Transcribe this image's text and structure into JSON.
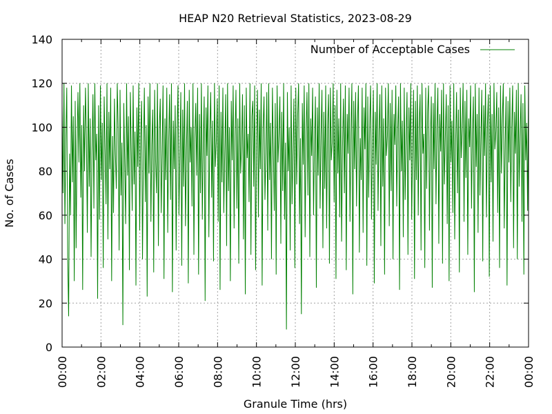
{
  "chart_data": {
    "type": "line",
    "title": "HEAP N20 Retrieval Statistics, 2023-08-29",
    "xlabel": "Granule Time (hrs)",
    "ylabel": "No. of Cases",
    "xlim": [
      "00:00",
      "24:00"
    ],
    "ylim": [
      0,
      140
    ],
    "x_ticks": [
      "00:00",
      "02:00",
      "04:00",
      "06:00",
      "08:00",
      "10:00",
      "12:00",
      "14:00",
      "16:00",
      "18:00",
      "20:00",
      "22:00",
      "00:00"
    ],
    "y_ticks": [
      0,
      20,
      40,
      60,
      80,
      100,
      120,
      140
    ],
    "grid": true,
    "legend_position": "top-right",
    "series": [
      {
        "name": "Number of Acceptable Cases",
        "color": "#008000",
        "sampling": "one value every 2 minutes starting 00:00",
        "values": [
          110,
          70,
          120,
          56,
          95,
          118,
          40,
          14,
          88,
          60,
          119,
          75,
          105,
          30,
          112,
          45,
          92,
          116,
          84,
          120,
          68,
          101,
          26,
          110,
          80,
          118,
          96,
          52,
          120,
          73,
          104,
          41,
          89,
          115,
          63,
          120,
          85,
          97,
          22,
          110,
          58,
          119,
          76,
          102,
          36,
          114,
          90,
          65,
          120,
          49,
          107,
          81,
          118,
          30,
          96,
          61,
          113,
          88,
          72,
          120,
          100,
          44,
          117,
          69,
          93,
          10,
          111,
          84,
          56,
          120,
          78,
          105,
          35,
          116,
          90,
          62,
          119,
          74,
          98,
          28,
          109,
          82,
          120,
          53,
          95,
          112,
          40,
          87,
          118,
          66,
          101,
          23,
          114,
          79,
          120,
          57,
          92,
          108,
          34,
          117,
          85,
          70,
          120,
          46,
          99,
          113,
          61,
          88,
          119,
          31,
          104,
          76,
          118,
          52,
          94,
          115,
          67,
          120,
          25,
          103,
          81,
          110,
          44,
          97,
          119,
          60,
          86,
          116,
          37,
          108,
          73,
          120,
          55,
          90,
          112,
          29,
          117,
          84,
          100,
          64,
          120,
          42,
          95,
          111,
          78,
          118,
          33,
          106,
          70,
          120,
          58,
          92,
          114,
          21,
          109,
          87,
          119,
          50,
          98,
          116,
          68,
          103,
          39,
          120,
          82,
          94,
          113,
          57,
          119,
          26,
          107,
          75,
          118,
          61,
          89,
          115,
          46,
          120,
          71,
          100,
          30,
          112,
          85,
          119,
          54,
          96,
          117,
          63,
          104,
          38,
          120,
          79,
          91,
          115,
          49,
          110,
          24,
          118,
          86,
          97,
          66,
          120,
          42,
          105,
          112,
          73,
          119,
          35,
          93,
          117,
          59,
          108,
          81,
          120,
          28,
          99,
          114,
          67,
          88,
          116,
          53,
          120,
          76,
          102,
          40,
          118,
          90,
          62,
          111,
          33,
          119,
          84,
          97,
          114,
          47,
          107,
          71,
          120,
          58,
          93,
          8,
          116,
          80,
          100,
          44,
          119,
          65,
          89,
          113,
          36,
          118,
          74,
          105,
          120,
          56,
          95,
          15,
          111,
          83,
          119,
          50,
          98,
          116,
          69,
          120,
          41,
          104,
          87,
          118,
          60,
          92,
          114,
          27,
          109,
          78,
          120,
          63,
          96,
          117,
          45,
          107,
          72,
          119,
          54,
          100,
          115,
          38,
          118,
          85,
          93,
          120,
          66,
          110,
          31,
          117,
          79,
          104,
          59,
          120,
          48,
          91,
          113,
          70,
          119,
          35,
          106,
          88,
          118,
          57,
          97,
          120,
          24,
          112,
          81,
          116,
          64,
          102,
          119,
          43,
          95,
          76,
          118,
          52,
          109,
          90,
          120,
          37,
          114,
          68,
          100,
          119,
          58,
          93,
          117,
          29,
          107,
          83,
          120,
          62,
          98,
          115,
          46,
          119,
          73,
          104,
          33,
          118,
          87,
          96,
          120,
          55,
          111,
          71,
          117,
          40,
          106,
          92,
          119,
          64,
          99,
          114,
          26,
          120,
          80,
          103,
          50,
          118,
          67,
          95,
          116,
          42,
          109,
          85,
          120,
          58,
          92,
          117,
          31,
          112,
          76,
          119,
          60,
          101,
          115,
          44,
          120,
          88,
          97,
          36,
          118,
          72,
          107,
          119,
          53,
          94,
          114,
          27,
          111,
          81,
          120,
          65,
          100,
          118,
          47,
          106,
          89,
          117,
          38,
          120,
          74,
          96,
          115,
          56,
          110,
          30,
          119,
          84,
          103,
          61,
          120,
          49,
          93,
          116,
          70,
          108,
          34,
          118,
          86,
          99,
          120,
          57,
          112,
          77,
          117,
          42,
          104,
          91,
          119,
          63,
          97,
          114,
          25,
          120,
          82,
          106,
          52,
          118,
          69,
          95,
          117,
          39,
          110,
          87,
          120,
          59,
          101,
          115,
          32,
          119,
          75,
          106,
          48,
          120,
          90,
          98,
          116,
          61,
          109,
          36,
          119,
          79,
          104,
          120,
          54,
          93,
          114,
          28,
          112,
          84,
          118,
          66,
          100,
          119,
          45,
          107,
          88,
          117,
          40,
          120,
          73,
          96,
          115,
          57,
          111,
          33,
          119,
          85,
          102,
          62,
          120
        ]
      }
    ]
  }
}
